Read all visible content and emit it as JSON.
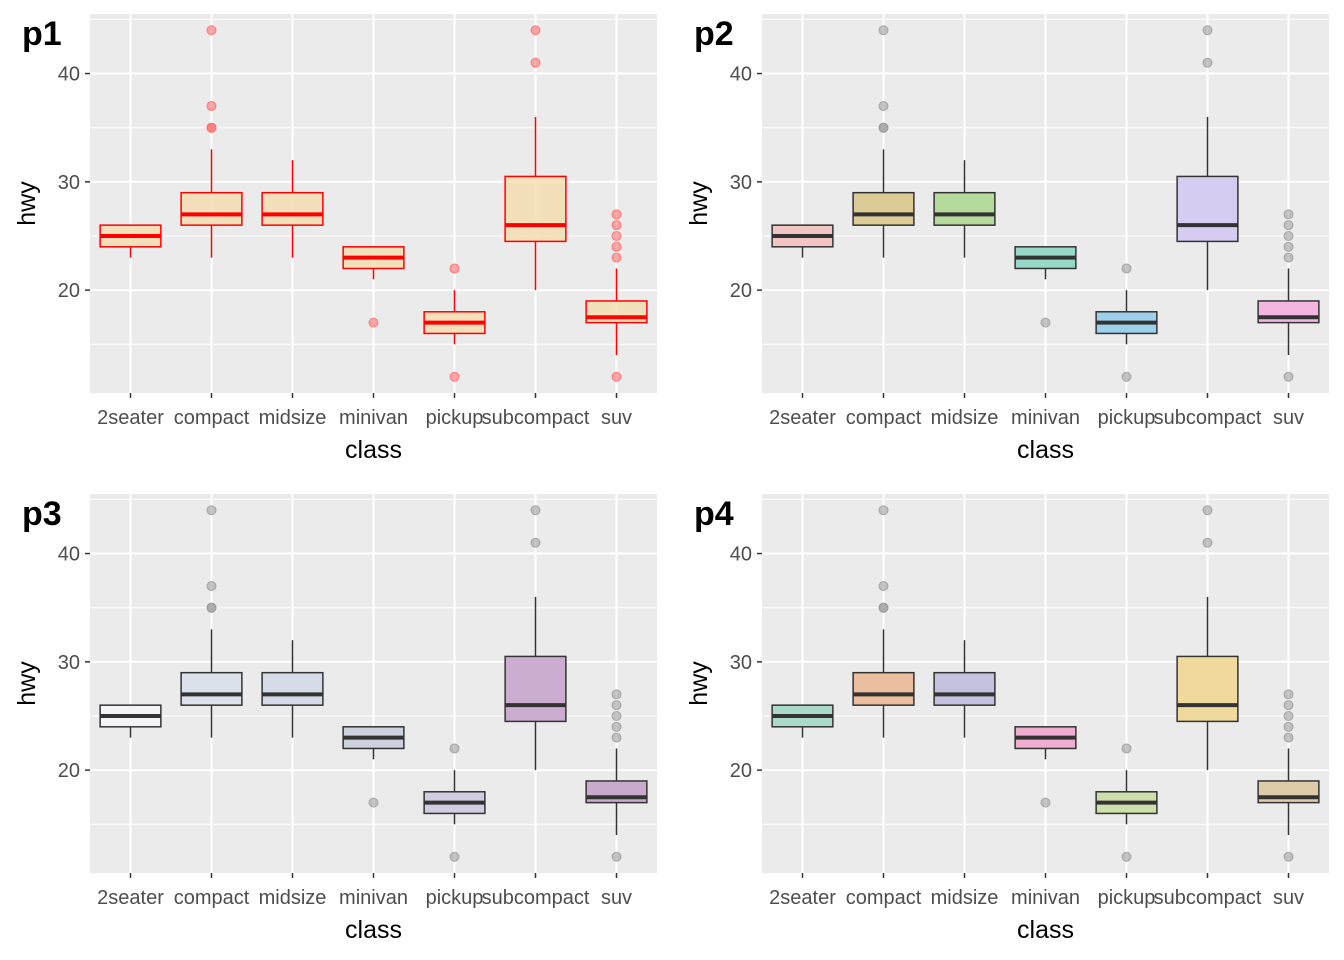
{
  "chart_data": [
    {
      "type": "box",
      "tag": "p1",
      "xlabel": "class",
      "ylabel": "hwy",
      "yticks": [
        20,
        30,
        40
      ],
      "ylim": [
        10.5,
        45.5
      ],
      "categories": [
        "2seater",
        "compact",
        "midsize",
        "minivan",
        "pickup",
        "subcompact",
        "suv"
      ],
      "style": {
        "fill": "#F5DEB3",
        "stroke": "#FF0000",
        "outlier": "#FF6666",
        "fill_opacity": 0.85
      },
      "fills": [],
      "boxes": [
        {
          "category": "2seater",
          "min": 23,
          "q1": 24,
          "median": 25,
          "q3": 26,
          "max": 26,
          "outliers": []
        },
        {
          "category": "compact",
          "min": 23,
          "q1": 26,
          "median": 27,
          "q3": 29,
          "max": 33,
          "outliers": [
            35,
            35,
            37,
            44
          ]
        },
        {
          "category": "midsize",
          "min": 23,
          "q1": 26,
          "median": 27,
          "q3": 29,
          "max": 32,
          "outliers": []
        },
        {
          "category": "minivan",
          "min": 21,
          "q1": 22,
          "median": 23,
          "q3": 24,
          "max": 24,
          "outliers": [
            17
          ]
        },
        {
          "category": "pickup",
          "min": 15,
          "q1": 16,
          "median": 17,
          "q3": 18,
          "max": 20,
          "outliers": [
            12,
            22
          ]
        },
        {
          "category": "subcompact",
          "min": 20,
          "q1": 24.5,
          "median": 26,
          "q3": 30.5,
          "max": 36,
          "outliers": [
            41,
            44
          ]
        },
        {
          "category": "suv",
          "min": 14,
          "q1": 17,
          "median": 17.5,
          "q3": 19,
          "max": 22,
          "outliers": [
            12,
            23,
            24,
            25,
            26,
            27
          ]
        }
      ]
    },
    {
      "type": "box",
      "tag": "p2",
      "xlabel": "class",
      "ylabel": "hwy",
      "yticks": [
        20,
        30,
        40
      ],
      "ylim": [
        10.5,
        45.5
      ],
      "categories": [
        "2seater",
        "compact",
        "midsize",
        "minivan",
        "pickup",
        "subcompact",
        "suv"
      ],
      "style": {
        "stroke": "#333333",
        "outlier": "#999999"
      },
      "fills": [
        "#F2C4C4",
        "#DCCB94",
        "#B5DB9C",
        "#98D8C8",
        "#9DD0EA",
        "#D6CCF2",
        "#F2B6E0"
      ],
      "boxes": [
        {
          "category": "2seater",
          "min": 23,
          "q1": 24,
          "median": 25,
          "q3": 26,
          "max": 26,
          "outliers": []
        },
        {
          "category": "compact",
          "min": 23,
          "q1": 26,
          "median": 27,
          "q3": 29,
          "max": 33,
          "outliers": [
            35,
            35,
            37,
            44
          ]
        },
        {
          "category": "midsize",
          "min": 23,
          "q1": 26,
          "median": 27,
          "q3": 29,
          "max": 32,
          "outliers": []
        },
        {
          "category": "minivan",
          "min": 21,
          "q1": 22,
          "median": 23,
          "q3": 24,
          "max": 24,
          "outliers": [
            17
          ]
        },
        {
          "category": "pickup",
          "min": 15,
          "q1": 16,
          "median": 17,
          "q3": 18,
          "max": 20,
          "outliers": [
            12,
            22
          ]
        },
        {
          "category": "subcompact",
          "min": 20,
          "q1": 24.5,
          "median": 26,
          "q3": 30.5,
          "max": 36,
          "outliers": [
            41,
            44
          ]
        },
        {
          "category": "suv",
          "min": 14,
          "q1": 17,
          "median": 17.5,
          "q3": 19,
          "max": 22,
          "outliers": [
            12,
            23,
            24,
            25,
            26,
            27
          ]
        }
      ]
    },
    {
      "type": "box",
      "tag": "p3",
      "xlabel": "class",
      "ylabel": "hwy",
      "yticks": [
        20,
        30,
        40
      ],
      "ylim": [
        10.5,
        45.5
      ],
      "categories": [
        "2seater",
        "compact",
        "midsize",
        "minivan",
        "pickup",
        "subcompact",
        "suv"
      ],
      "style": {
        "stroke": "#333333",
        "outlier": "#999999"
      },
      "fills": [
        "#F3F3F7",
        "#DCE1EC",
        "#D5DCE8",
        "#CDD1DE",
        "#D2CCE2",
        "#CBADD2",
        "#C9A9CE"
      ],
      "boxes": [
        {
          "category": "2seater",
          "min": 23,
          "q1": 24,
          "median": 25,
          "q3": 26,
          "max": 26,
          "outliers": []
        },
        {
          "category": "compact",
          "min": 23,
          "q1": 26,
          "median": 27,
          "q3": 29,
          "max": 33,
          "outliers": [
            35,
            35,
            37,
            44
          ]
        },
        {
          "category": "midsize",
          "min": 23,
          "q1": 26,
          "median": 27,
          "q3": 29,
          "max": 32,
          "outliers": []
        },
        {
          "category": "minivan",
          "min": 21,
          "q1": 22,
          "median": 23,
          "q3": 24,
          "max": 24,
          "outliers": [
            17
          ]
        },
        {
          "category": "pickup",
          "min": 15,
          "q1": 16,
          "median": 17,
          "q3": 18,
          "max": 20,
          "outliers": [
            12,
            22
          ]
        },
        {
          "category": "subcompact",
          "min": 20,
          "q1": 24.5,
          "median": 26,
          "q3": 30.5,
          "max": 36,
          "outliers": [
            41,
            44
          ]
        },
        {
          "category": "suv",
          "min": 14,
          "q1": 17,
          "median": 17.5,
          "q3": 19,
          "max": 22,
          "outliers": [
            12,
            23,
            24,
            25,
            26,
            27
          ]
        }
      ]
    },
    {
      "type": "box",
      "tag": "p4",
      "xlabel": "class",
      "ylabel": "hwy",
      "yticks": [
        20,
        30,
        40
      ],
      "ylim": [
        10.5,
        45.5
      ],
      "categories": [
        "2seater",
        "compact",
        "midsize",
        "minivan",
        "pickup",
        "subcompact",
        "suv"
      ],
      "style": {
        "stroke": "#333333",
        "outlier": "#999999"
      },
      "fills": [
        "#A8D9C9",
        "#EBBE9F",
        "#C4C2DE",
        "#EFAECF",
        "#CDDFAA",
        "#EFD99D",
        "#DECBA8"
      ],
      "boxes": [
        {
          "category": "2seater",
          "min": 23,
          "q1": 24,
          "median": 25,
          "q3": 26,
          "max": 26,
          "outliers": []
        },
        {
          "category": "compact",
          "min": 23,
          "q1": 26,
          "median": 27,
          "q3": 29,
          "max": 33,
          "outliers": [
            35,
            35,
            37,
            44
          ]
        },
        {
          "category": "midsize",
          "min": 23,
          "q1": 26,
          "median": 27,
          "q3": 29,
          "max": 32,
          "outliers": []
        },
        {
          "category": "minivan",
          "min": 21,
          "q1": 22,
          "median": 23,
          "q3": 24,
          "max": 24,
          "outliers": [
            17
          ]
        },
        {
          "category": "pickup",
          "min": 15,
          "q1": 16,
          "median": 17,
          "q3": 18,
          "max": 20,
          "outliers": [
            12,
            22
          ]
        },
        {
          "category": "subcompact",
          "min": 20,
          "q1": 24.5,
          "median": 26,
          "q3": 30.5,
          "max": 36,
          "outliers": [
            41,
            44
          ]
        },
        {
          "category": "suv",
          "min": 14,
          "q1": 17,
          "median": 17.5,
          "q3": 19,
          "max": 22,
          "outliers": [
            12,
            23,
            24,
            25,
            26,
            27
          ]
        }
      ]
    }
  ]
}
